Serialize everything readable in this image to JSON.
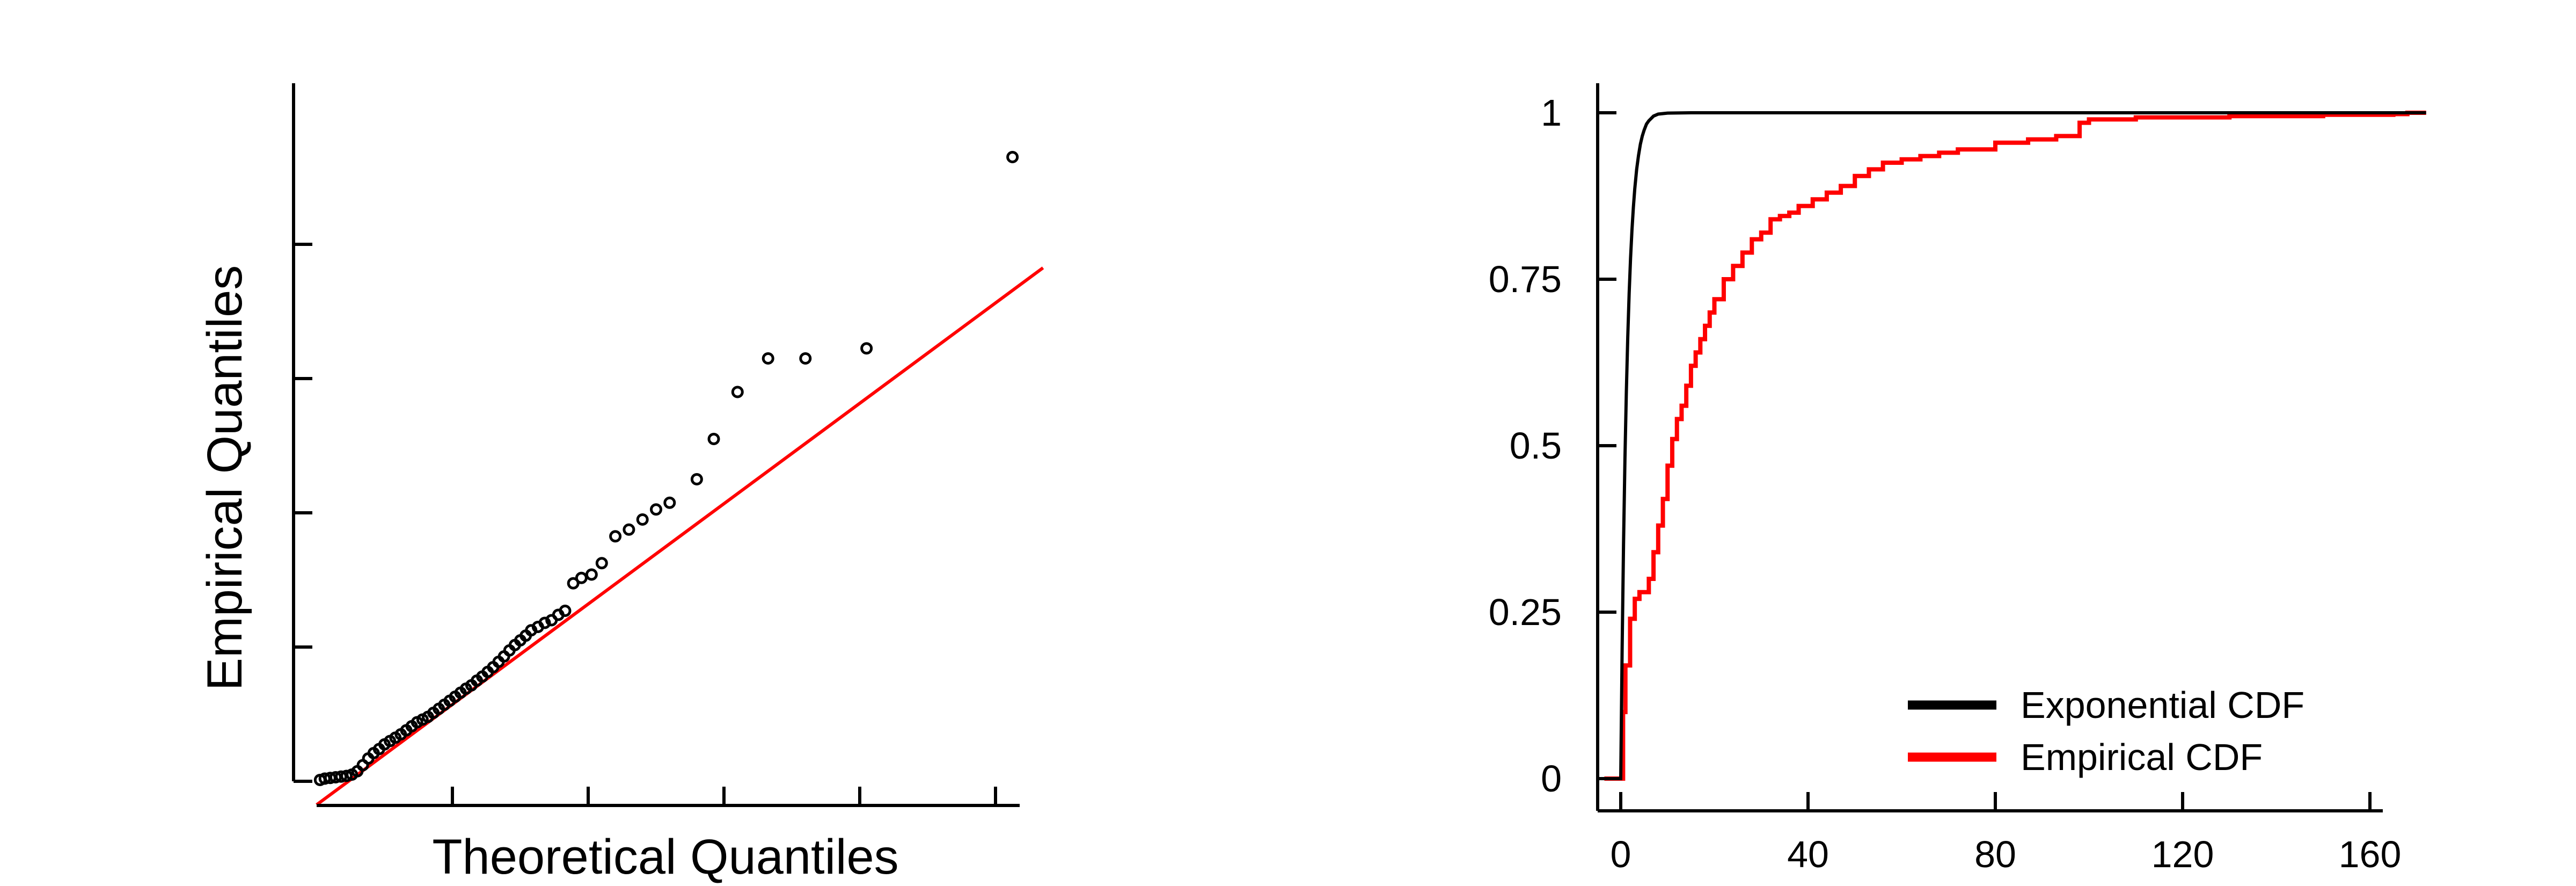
{
  "chart_data": [
    {
      "type": "scatter",
      "title": "",
      "xlabel": "Theoretical Quantiles",
      "ylabel": "Empirical Quantiles",
      "xlim": [
        0,
        100
      ],
      "ylim": [
        0,
        100
      ],
      "show_tick_labels": false,
      "grid": false,
      "x_ticks": [
        20,
        40,
        60,
        80,
        100
      ],
      "y_ticks": [
        0,
        20,
        40,
        60,
        80
      ],
      "points": [
        [
          0.5,
          0.2
        ],
        [
          1.2,
          0.4
        ],
        [
          2.0,
          0.5
        ],
        [
          2.8,
          0.6
        ],
        [
          3.6,
          0.7
        ],
        [
          4.4,
          0.8
        ],
        [
          5.2,
          1.0
        ],
        [
          6.0,
          1.5
        ],
        [
          6.8,
          2.4
        ],
        [
          7.6,
          3.4
        ],
        [
          8.4,
          4.2
        ],
        [
          9.2,
          4.8
        ],
        [
          10.0,
          5.5
        ],
        [
          10.8,
          6.0
        ],
        [
          11.6,
          6.5
        ],
        [
          12.4,
          7.0
        ],
        [
          13.2,
          7.6
        ],
        [
          14.0,
          8.2
        ],
        [
          14.8,
          8.8
        ],
        [
          15.6,
          9.2
        ],
        [
          16.4,
          9.6
        ],
        [
          17.2,
          10.2
        ],
        [
          18.0,
          10.8
        ],
        [
          18.8,
          11.4
        ],
        [
          19.6,
          12.0
        ],
        [
          20.4,
          12.6
        ],
        [
          21.2,
          13.2
        ],
        [
          22.0,
          13.8
        ],
        [
          22.8,
          14.3
        ],
        [
          23.6,
          15.0
        ],
        [
          24.4,
          15.6
        ],
        [
          25.2,
          16.3
        ],
        [
          26.0,
          17.0
        ],
        [
          26.8,
          17.8
        ],
        [
          27.6,
          18.6
        ],
        [
          28.4,
          19.5
        ],
        [
          29.2,
          20.3
        ],
        [
          30.0,
          21.0
        ],
        [
          30.8,
          21.7
        ],
        [
          31.6,
          22.5
        ],
        [
          32.6,
          23.0
        ],
        [
          33.6,
          23.6
        ],
        [
          34.6,
          24.0
        ],
        [
          35.6,
          24.8
        ],
        [
          36.6,
          25.4
        ],
        [
          37.8,
          29.5
        ],
        [
          39.0,
          30.3
        ],
        [
          40.5,
          30.8
        ],
        [
          42.0,
          32.5
        ],
        [
          44.0,
          36.5
        ],
        [
          46.0,
          37.5
        ],
        [
          48.0,
          39.0
        ],
        [
          50.0,
          40.5
        ],
        [
          52.0,
          41.5
        ],
        [
          56.0,
          45.0
        ],
        [
          58.5,
          51.0
        ],
        [
          62.0,
          58.0
        ],
        [
          66.5,
          63.0
        ],
        [
          72.0,
          63.0
        ],
        [
          81.0,
          64.5
        ],
        [
          102.5,
          93.0
        ]
      ],
      "reference_line": {
        "x": [
          0,
          107
        ],
        "y": [
          -3.5,
          76.5
        ]
      },
      "colors": {
        "points": "#000000",
        "reference_line": "#ff0000"
      }
    },
    {
      "type": "line",
      "title": "",
      "xlabel": "",
      "ylabel": "",
      "xlim": [
        -4,
        173
      ],
      "ylim": [
        -0.04,
        1.04
      ],
      "grid": false,
      "x_ticks": [
        0,
        40,
        80,
        120,
        160
      ],
      "x_tick_labels": [
        "0",
        "40",
        "80",
        "120",
        "160"
      ],
      "y_ticks": [
        0,
        0.25,
        0.5,
        0.75,
        1
      ],
      "y_tick_labels": [
        "0",
        "0.25",
        "0.5",
        "0.75",
        "1"
      ],
      "legend_position": "bottom-right",
      "series": [
        {
          "name": "Exponential CDF",
          "color": "#000000",
          "x": [
            -3.5,
            0,
            0.3,
            0.6,
            0.9,
            1.2,
            1.5,
            1.8,
            2.1,
            2.4,
            2.7,
            3.0,
            3.4,
            3.8,
            4.2,
            4.6,
            5.0,
            5.5,
            6.0,
            7.0,
            8.0,
            10.0,
            15.0,
            172.0
          ],
          "y": [
            0,
            0,
            0.195,
            0.353,
            0.48,
            0.581,
            0.663,
            0.729,
            0.782,
            0.824,
            0.858,
            0.886,
            0.915,
            0.936,
            0.953,
            0.965,
            0.974,
            0.983,
            0.988,
            0.995,
            0.998,
            0.9995,
            1.0,
            1.0
          ]
        },
        {
          "name": "Empirical CDF",
          "color": "#ff0000",
          "x": [
            -3.5,
            0,
            0.5,
            1,
            2,
            3,
            4,
            6,
            7,
            8,
            9,
            10,
            11,
            12,
            13,
            14,
            15,
            16,
            17,
            18,
            19,
            20,
            22,
            24,
            26,
            28,
            30,
            32,
            34,
            36,
            38,
            41,
            44,
            47,
            50,
            53,
            56,
            60,
            64,
            68,
            72,
            80,
            87,
            93,
            98,
            100,
            110,
            130,
            150,
            165,
            168,
            172
          ],
          "y": [
            0,
            0,
            0.1,
            0.17,
            0.24,
            0.27,
            0.28,
            0.3,
            0.34,
            0.38,
            0.42,
            0.47,
            0.51,
            0.54,
            0.56,
            0.59,
            0.62,
            0.64,
            0.66,
            0.68,
            0.7,
            0.72,
            0.75,
            0.77,
            0.79,
            0.81,
            0.82,
            0.84,
            0.845,
            0.85,
            0.86,
            0.87,
            0.88,
            0.89,
            0.905,
            0.915,
            0.925,
            0.93,
            0.935,
            0.94,
            0.945,
            0.955,
            0.96,
            0.965,
            0.985,
            0.99,
            0.993,
            0.995,
            0.997,
            0.998,
            1.0,
            1.0
          ]
        }
      ]
    }
  ]
}
